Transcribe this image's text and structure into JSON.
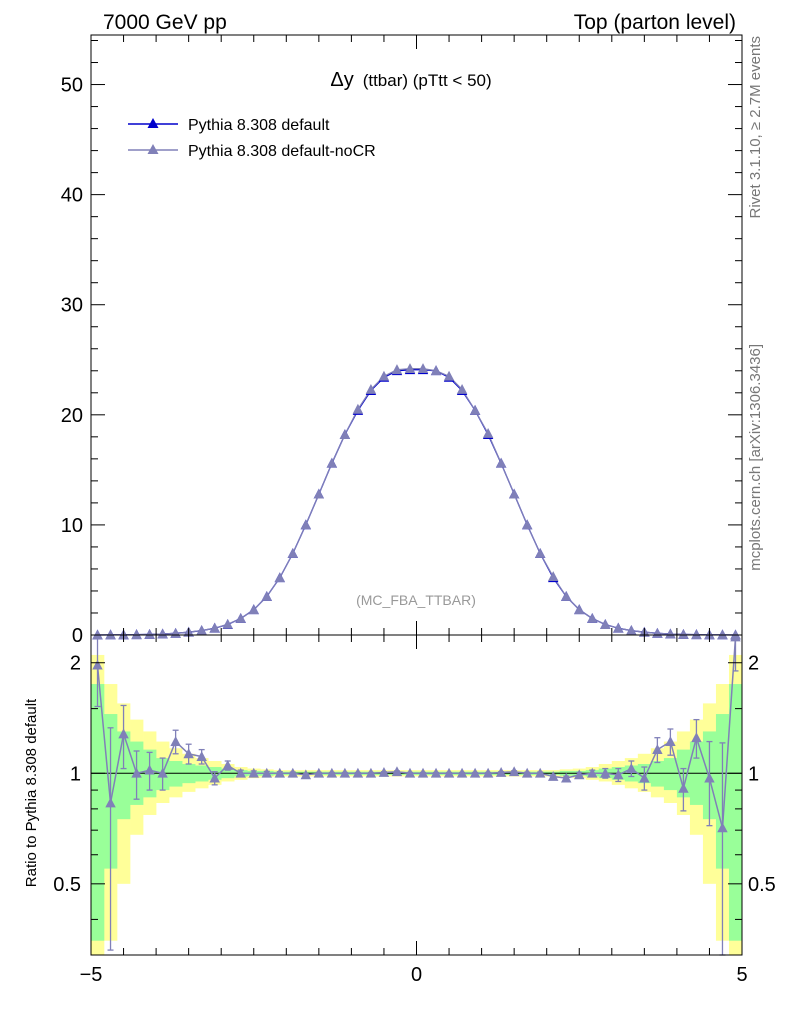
{
  "header": {
    "left": "7000 GeV pp",
    "right": "Top (parton level)"
  },
  "side_notes": {
    "rivet": "Rivet 3.1.10, ≥ 2.7M events",
    "mcplots": "mcplots.cern.ch [arXiv:1306.3436]"
  },
  "watermark": "(MC_FBA_TTBAR)",
  "colors": {
    "default": "#0000cc",
    "nocr": "#8080b8",
    "band_green": "#99ff99",
    "band_yellow": "#ffff99"
  },
  "chart_data": [
    {
      "type": "line",
      "title_main": "Δy",
      "title_rest": "(ttbar) (pTtt < 50)",
      "xlim": [
        -5,
        5
      ],
      "ylim": [
        0,
        54.5
      ],
      "yticks": [
        0,
        10,
        20,
        30,
        40,
        50
      ],
      "legend_position": "top-left",
      "x": [
        -4.9,
        -4.7,
        -4.5,
        -4.3,
        -4.1,
        -3.9,
        -3.7,
        -3.5,
        -3.3,
        -3.1,
        -2.9,
        -2.7,
        -2.5,
        -2.3,
        -2.1,
        -1.9,
        -1.7,
        -1.5,
        -1.3,
        -1.1,
        -0.9,
        -0.7,
        -0.5,
        -0.3,
        -0.1,
        0.1,
        0.3,
        0.5,
        0.7,
        0.9,
        1.1,
        1.3,
        1.5,
        1.7,
        1.9,
        2.1,
        2.3,
        2.5,
        2.7,
        2.9,
        3.1,
        3.3,
        3.5,
        3.7,
        3.9,
        4.1,
        4.3,
        4.5,
        4.7,
        4.9
      ],
      "series": [
        {
          "name": "Pythia 8.308 default",
          "values": [
            0.0,
            0.01,
            0.01,
            0.03,
            0.05,
            0.09,
            0.15,
            0.25,
            0.4,
            0.62,
            0.95,
            1.5,
            2.3,
            3.5,
            5.2,
            7.4,
            10.0,
            12.8,
            15.6,
            18.2,
            20.4,
            22.2,
            23.4,
            24.0,
            24.1,
            24.1,
            24.0,
            23.4,
            22.2,
            20.4,
            18.2,
            15.6,
            12.8,
            10.0,
            7.4,
            5.2,
            3.5,
            2.3,
            1.5,
            0.95,
            0.62,
            0.4,
            0.25,
            0.15,
            0.09,
            0.05,
            0.03,
            0.01,
            0.01,
            0.0
          ]
        },
        {
          "name": "Pythia 8.308 default-noCR",
          "values": [
            0.0,
            0.01,
            0.01,
            0.03,
            0.05,
            0.09,
            0.15,
            0.26,
            0.41,
            0.62,
            0.97,
            1.5,
            2.3,
            3.5,
            5.2,
            7.4,
            10.0,
            12.8,
            15.6,
            18.2,
            20.5,
            22.3,
            23.5,
            24.1,
            24.2,
            24.2,
            24.0,
            23.5,
            22.3,
            20.4,
            18.3,
            15.6,
            12.8,
            10.0,
            7.4,
            5.3,
            3.5,
            2.3,
            1.5,
            0.95,
            0.62,
            0.41,
            0.25,
            0.15,
            0.09,
            0.05,
            0.03,
            0.01,
            0.01,
            0.0
          ]
        }
      ]
    },
    {
      "type": "line",
      "ylabel": "Ratio to Pythia 8.308 default",
      "xlim": [
        -5,
        5
      ],
      "ylim": [
        0.32,
        2.38
      ],
      "yscale": "log",
      "yticks": [
        0.5,
        1,
        2
      ],
      "ytick_labels": [
        "0.5",
        "1",
        "2"
      ],
      "xticks": [
        -5,
        0,
        5
      ],
      "xtick_labels": [
        "−5",
        "0",
        "5"
      ],
      "x": [
        -4.9,
        -4.7,
        -4.5,
        -4.3,
        -4.1,
        -3.9,
        -3.7,
        -3.5,
        -3.3,
        -3.1,
        -2.9,
        -2.7,
        -2.5,
        -2.3,
        -2.1,
        -1.9,
        -1.7,
        -1.5,
        -1.3,
        -1.1,
        -0.9,
        -0.7,
        -0.5,
        -0.3,
        -0.1,
        0.1,
        0.3,
        0.5,
        0.7,
        0.9,
        1.1,
        1.3,
        1.5,
        1.7,
        1.9,
        2.1,
        2.3,
        2.5,
        2.7,
        2.9,
        3.1,
        3.3,
        3.5,
        3.7,
        3.9,
        4.1,
        4.3,
        4.5,
        4.7,
        4.9
      ],
      "reference_line": 1,
      "band_green_lo": [
        0.35,
        0.55,
        0.75,
        0.82,
        0.86,
        0.9,
        0.92,
        0.94,
        0.95,
        0.96,
        0.97,
        0.98,
        0.985,
        0.985,
        0.99,
        0.99,
        0.99,
        0.99,
        0.99,
        0.99,
        0.99,
        0.99,
        0.99,
        0.99,
        0.99,
        0.99,
        0.99,
        0.99,
        0.99,
        0.99,
        0.99,
        0.99,
        0.99,
        0.99,
        0.99,
        0.99,
        0.985,
        0.985,
        0.98,
        0.97,
        0.96,
        0.95,
        0.94,
        0.92,
        0.9,
        0.86,
        0.82,
        0.75,
        0.55,
        0.35
      ],
      "band_green_hi": [
        1.75,
        1.45,
        1.3,
        1.22,
        1.16,
        1.1,
        1.08,
        1.06,
        1.05,
        1.04,
        1.03,
        1.02,
        1.015,
        1.015,
        1.01,
        1.01,
        1.01,
        1.01,
        1.01,
        1.01,
        1.01,
        1.01,
        1.01,
        1.01,
        1.01,
        1.01,
        1.01,
        1.01,
        1.01,
        1.01,
        1.01,
        1.01,
        1.01,
        1.01,
        1.01,
        1.01,
        1.015,
        1.015,
        1.02,
        1.03,
        1.04,
        1.05,
        1.06,
        1.08,
        1.1,
        1.16,
        1.22,
        1.3,
        1.45,
        1.75
      ],
      "band_yellow_lo": [
        0.3,
        0.35,
        0.5,
        0.68,
        0.77,
        0.83,
        0.86,
        0.89,
        0.91,
        0.93,
        0.95,
        0.96,
        0.97,
        0.975,
        0.98,
        0.98,
        0.98,
        0.98,
        0.98,
        0.98,
        0.98,
        0.98,
        0.98,
        0.98,
        0.98,
        0.98,
        0.98,
        0.98,
        0.98,
        0.98,
        0.98,
        0.98,
        0.98,
        0.98,
        0.98,
        0.98,
        0.975,
        0.97,
        0.96,
        0.95,
        0.93,
        0.91,
        0.89,
        0.86,
        0.83,
        0.77,
        0.68,
        0.5,
        0.35,
        0.3
      ],
      "band_yellow_hi": [
        2.1,
        1.75,
        1.55,
        1.4,
        1.3,
        1.22,
        1.17,
        1.13,
        1.1,
        1.08,
        1.06,
        1.04,
        1.03,
        1.025,
        1.02,
        1.02,
        1.02,
        1.02,
        1.02,
        1.02,
        1.02,
        1.02,
        1.02,
        1.02,
        1.02,
        1.02,
        1.02,
        1.02,
        1.02,
        1.02,
        1.02,
        1.02,
        1.02,
        1.02,
        1.02,
        1.02,
        1.025,
        1.03,
        1.04,
        1.06,
        1.08,
        1.1,
        1.13,
        1.17,
        1.22,
        1.3,
        1.4,
        1.55,
        1.75,
        2.1
      ],
      "series": [
        {
          "name": "Pythia 8.308 default-noCR",
          "values": [
            1.97,
            0.83,
            1.28,
            1.0,
            1.02,
            1.0,
            1.22,
            1.13,
            1.11,
            0.97,
            1.05,
            1.0,
            1.0,
            1.0,
            1.0,
            1.0,
            0.99,
            1.0,
            1.0,
            1.0,
            1.0,
            1.0,
            1.005,
            1.01,
            1.0,
            1.0,
            1.0,
            1.0,
            1.0,
            1.0,
            1.0,
            1.005,
            1.01,
            1.0,
            1.0,
            0.98,
            0.97,
            0.99,
            1.0,
            1.0,
            0.99,
            1.03,
            0.97,
            1.16,
            1.22,
            0.91,
            1.25,
            0.97,
            0.71,
            2.35
          ],
          "err_lo": [
            0.45,
            0.5,
            0.25,
            0.15,
            0.12,
            0.1,
            0.09,
            0.07,
            0.05,
            0.04,
            0.03,
            0.02,
            0.015,
            0.012,
            0.01,
            0.008,
            0.007,
            0.006,
            0.005,
            0.005,
            0.005,
            0.005,
            0.005,
            0.005,
            0.005,
            0.005,
            0.005,
            0.005,
            0.005,
            0.005,
            0.005,
            0.005,
            0.006,
            0.007,
            0.008,
            0.01,
            0.012,
            0.015,
            0.02,
            0.03,
            0.04,
            0.05,
            0.07,
            0.09,
            0.1,
            0.12,
            0.15,
            0.25,
            0.5,
            0.45
          ],
          "err_hi": [
            0.45,
            0.5,
            0.25,
            0.15,
            0.12,
            0.1,
            0.09,
            0.07,
            0.05,
            0.04,
            0.03,
            0.02,
            0.015,
            0.012,
            0.01,
            0.008,
            0.007,
            0.006,
            0.005,
            0.005,
            0.005,
            0.005,
            0.005,
            0.005,
            0.005,
            0.005,
            0.005,
            0.005,
            0.005,
            0.005,
            0.005,
            0.005,
            0.006,
            0.007,
            0.008,
            0.01,
            0.012,
            0.015,
            0.02,
            0.03,
            0.04,
            0.05,
            0.07,
            0.09,
            0.1,
            0.12,
            0.15,
            0.25,
            0.5,
            0.45
          ]
        }
      ]
    }
  ]
}
